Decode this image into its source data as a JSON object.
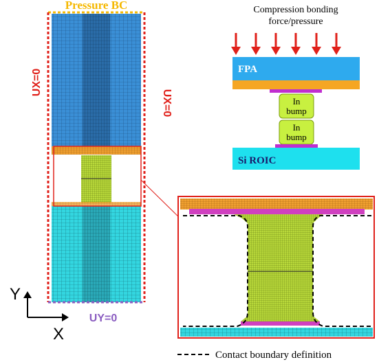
{
  "left_model": {
    "title": "Pressure BC",
    "left_bc": "UX=0",
    "right_bc": "UX=0",
    "bottom_bc": "UY=0",
    "axis_y": "Y",
    "axis_x": "X"
  },
  "schematic": {
    "force_label": [
      "Compression bonding",
      "force/pressure"
    ],
    "top_layer": "FPA",
    "bump_1": [
      "In",
      "bump"
    ],
    "bump_2": [
      "In",
      "bump"
    ],
    "bottom_layer": "Si ROIC"
  },
  "legend": {
    "contact": "Contact boundary definition"
  }
}
